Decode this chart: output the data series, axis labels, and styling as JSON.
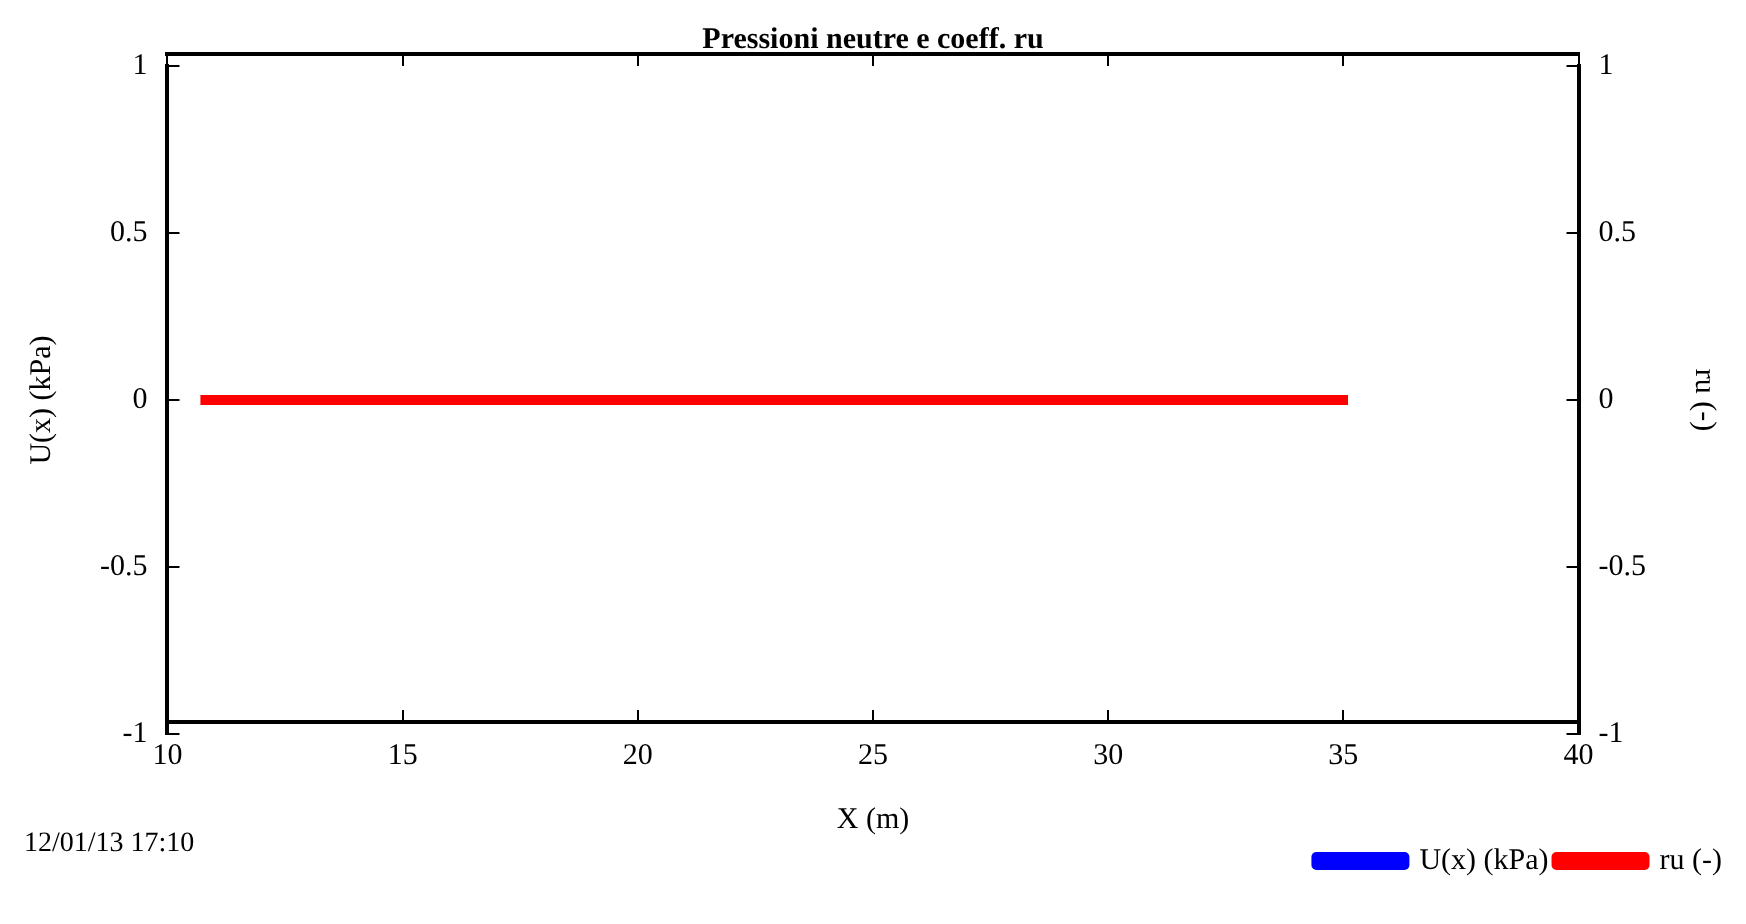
{
  "chart_data": {
    "type": "line",
    "title": "Pressioni neutre e coeff. ru",
    "xlabel": "X (m)",
    "ylabel": "U(x) (kPa)",
    "y2label": "ru (-)",
    "x": [
      10.7,
      35.1
    ],
    "xlim": [
      10,
      40
    ],
    "xticks": [
      10,
      15,
      20,
      25,
      30,
      35,
      40
    ],
    "ylim": [
      -1,
      1
    ],
    "yticks": [
      -1,
      -0.5,
      0,
      0.5,
      1
    ],
    "y2lim": [
      -1,
      1
    ],
    "y2ticks": [
      -1,
      -0.5,
      0,
      0.5,
      1
    ],
    "grid": false,
    "legend": "bottom right",
    "marker": "none",
    "line_style": "solid",
    "annotations": [
      "12/01/13 17:10"
    ],
    "series": [
      {
        "name": "U(x) (kPa)",
        "color": "#0000ff",
        "values": [
          null,
          null
        ]
      },
      {
        "name": "ru (-)",
        "color": "#ff0000",
        "values": [
          0,
          0
        ]
      }
    ]
  }
}
